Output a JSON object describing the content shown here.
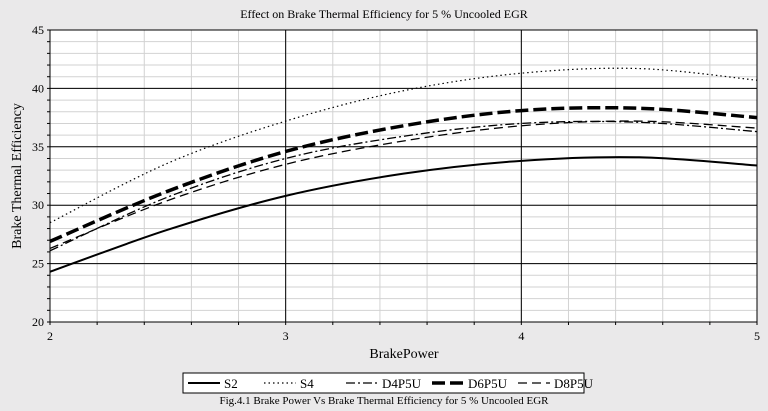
{
  "chart_data": {
    "type": "line",
    "title": "Effect on Brake Thermal Efficiency for 5 % Uncooled EGR",
    "caption": "Fig.4.1 Brake Power Vs Brake Thermal Efficiency  for 5 % Uncooled EGR",
    "xlabel": "BrakePower",
    "ylabel": "Brake Thermal Efficiency",
    "xlim": [
      2,
      5
    ],
    "ylim": [
      20,
      45
    ],
    "xticks": [
      2,
      3,
      4,
      5
    ],
    "yticks": [
      20,
      25,
      30,
      35,
      40,
      45
    ],
    "grid": true,
    "legend_position": "bottom",
    "x": [
      2.0,
      2.5,
      3.0,
      3.5,
      4.0,
      4.5,
      5.0
    ],
    "series": [
      {
        "name": "S2",
        "style": "solid",
        "values": [
          24.3,
          27.9,
          30.8,
          32.7,
          33.8,
          34.1,
          33.4
        ]
      },
      {
        "name": "S4",
        "style": "dotted",
        "values": [
          28.5,
          33.6,
          37.2,
          39.8,
          41.3,
          41.7,
          40.7
        ]
      },
      {
        "name": "D4P5U",
        "style": "dashdot",
        "values": [
          26.1,
          30.7,
          34.0,
          35.9,
          37.0,
          37.1,
          36.3
        ]
      },
      {
        "name": "D6P5U",
        "style": "longdash",
        "values": [
          26.9,
          31.2,
          34.6,
          36.8,
          38.1,
          38.3,
          37.5
        ]
      },
      {
        "name": "D8P5U",
        "style": "dash",
        "values": [
          26.3,
          30.4,
          33.5,
          35.5,
          36.8,
          37.2,
          36.6
        ]
      }
    ]
  }
}
